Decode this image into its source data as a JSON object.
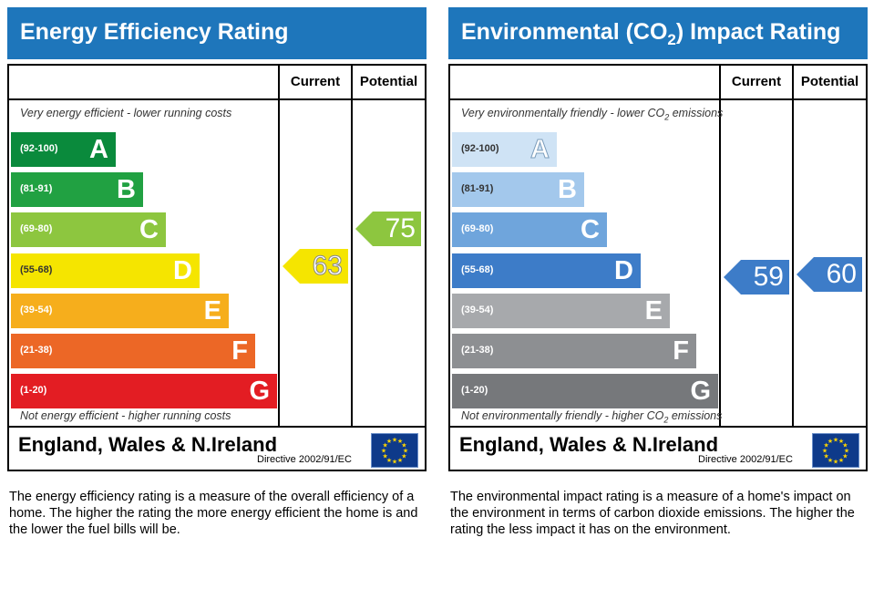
{
  "chart_data": [
    {
      "type": "bar",
      "title": "Energy Efficiency Rating",
      "columns": [
        "Current",
        "Potential"
      ],
      "top_note": "Very energy efficient - lower running costs",
      "bottom_note": "Not energy efficient - higher running costs",
      "bands": [
        {
          "range": "(92-100)",
          "letter": "A",
          "color": "#0a8a3c"
        },
        {
          "range": "(81-91)",
          "letter": "B",
          "color": "#21a142"
        },
        {
          "range": "(69-80)",
          "letter": "C",
          "color": "#8dc63f"
        },
        {
          "range": "(55-68)",
          "letter": "D",
          "color": "#f5e500"
        },
        {
          "range": "(39-54)",
          "letter": "E",
          "color": "#f6ae1c"
        },
        {
          "range": "(21-38)",
          "letter": "F",
          "color": "#ec6726"
        },
        {
          "range": "(1-20)",
          "letter": "G",
          "color": "#e31d23"
        }
      ],
      "current": {
        "value": 63,
        "label": "63",
        "color": "#f5e500"
      },
      "potential": {
        "value": 75,
        "label": "75",
        "color": "#8dc63f"
      },
      "region": "England, Wales & N.Ireland",
      "directive": "Directive 2002/91/EC"
    },
    {
      "type": "bar",
      "title": "Environmental (CO2) Impact Rating",
      "columns": [
        "Current",
        "Potential"
      ],
      "top_note": "Very environmentally friendly - lower CO2 emissions",
      "bottom_note": "Not environmentally friendly - higher CO2 emissions",
      "bands": [
        {
          "range": "(92-100)",
          "letter": "A",
          "color": "#cfe3f5"
        },
        {
          "range": "(81-91)",
          "letter": "B",
          "color": "#a3c8ec"
        },
        {
          "range": "(69-80)",
          "letter": "C",
          "color": "#6fa5dc"
        },
        {
          "range": "(55-68)",
          "letter": "D",
          "color": "#3d7cc8"
        },
        {
          "range": "(39-54)",
          "letter": "E",
          "color": "#a7a9ac"
        },
        {
          "range": "(21-38)",
          "letter": "F",
          "color": "#8d8f92"
        },
        {
          "range": "(1-20)",
          "letter": "G",
          "color": "#76787b"
        }
      ],
      "current": {
        "value": 59,
        "label": "59",
        "color": "#3d7cc8"
      },
      "potential": {
        "value": 60,
        "label": "60",
        "color": "#3d7cc8"
      },
      "region": "England, Wales & N.Ireland",
      "directive": "Directive 2002/91/EC"
    }
  ],
  "left": {
    "title": "Energy Efficiency Rating",
    "col_current": "Current",
    "col_potential": "Potential",
    "top_note": "Very energy efficient - lower running costs",
    "bottom_note": "Not energy efficient - higher running costs",
    "region": "England, Wales & N.Ireland",
    "directive": "Directive 2002/91/EC",
    "description": "The energy efficiency rating is a measure of the overall efficiency of a home. The higher the rating the more energy efficient the home is and the lower the fuel bills will be."
  },
  "right": {
    "title_pre": "Environmental (CO",
    "title_sub": "2",
    "title_post": ") Impact Rating",
    "col_current": "Current",
    "col_potential": "Potential",
    "top_note_pre": "Very environmentally friendly - lower CO",
    "top_note_sub": "2",
    "top_note_post": " emissions",
    "bottom_note_pre": "Not environmentally friendly - higher CO",
    "bottom_note_sub": "2",
    "bottom_note_post": " emissions",
    "region": "England, Wales & N.Ireland",
    "directive": "Directive 2002/91/EC",
    "description": "The environmental impact rating is a measure of a home's impact on the environment in terms of carbon dioxide emissions. The higher the rating the less impact it has on the environment."
  },
  "icons": {
    "eu_flag": "eu-flag-icon",
    "arrow": "rating-arrow"
  }
}
